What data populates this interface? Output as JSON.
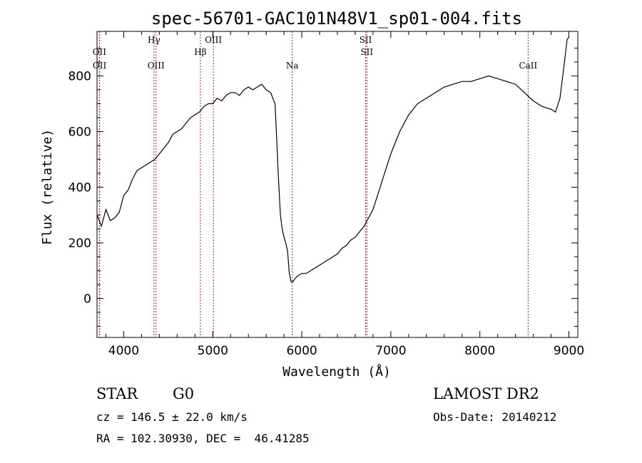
{
  "chart_data": {
    "type": "line",
    "title": "spec-56701-GAC101N48V1_sp01-004.fits",
    "xlabel": "Wavelength (Å)",
    "ylabel": "Flux (relative)",
    "xlim": [
      3700,
      9100
    ],
    "ylim": [
      -140,
      960
    ],
    "x_ticks": [
      4000,
      5000,
      6000,
      7000,
      8000,
      9000
    ],
    "y_ticks": [
      0,
      200,
      400,
      600,
      800
    ],
    "grid": false,
    "series": [
      {
        "x": [
          3700,
          3750,
          3800,
          3850,
          3900,
          3950,
          4000,
          4050,
          4100,
          4150,
          4200,
          4250,
          4300,
          4350,
          4400,
          4450,
          4500,
          4550,
          4600,
          4650,
          4700,
          4750,
          4800,
          4850,
          4900,
          4950,
          5000,
          5050,
          5100,
          5150,
          5200,
          5250,
          5300,
          5350,
          5400,
          5450,
          5500,
          5550,
          5600,
          5650,
          5700,
          5740,
          5760,
          5780,
          5800,
          5820,
          5840,
          5860,
          5880,
          5900,
          5920,
          5950,
          6000,
          6050,
          6100,
          6150,
          6200,
          6250,
          6300,
          6350,
          6400,
          6450,
          6500,
          6550,
          6600,
          6650,
          6700,
          6750,
          6800,
          6850,
          6900,
          6950,
          7000,
          7050,
          7100,
          7150,
          7200,
          7250,
          7300,
          7350,
          7400,
          7450,
          7500,
          7600,
          7700,
          7800,
          7900,
          8000,
          8100,
          8200,
          8300,
          8400,
          8500,
          8600,
          8700,
          8800,
          8850,
          8900,
          8950,
          8980,
          9000
        ],
        "y": [
          300,
          260,
          320,
          280,
          290,
          310,
          370,
          390,
          430,
          460,
          470,
          480,
          490,
          500,
          520,
          540,
          560,
          590,
          600,
          610,
          630,
          650,
          660,
          670,
          690,
          700,
          700,
          720,
          710,
          730,
          740,
          740,
          730,
          750,
          760,
          750,
          760,
          770,
          750,
          740,
          700,
          420,
          300,
          250,
          220,
          200,
          170,
          90,
          60,
          60,
          70,
          80,
          90,
          90,
          100,
          110,
          120,
          130,
          140,
          150,
          160,
          180,
          190,
          210,
          220,
          240,
          260,
          290,
          320,
          370,
          420,
          470,
          520,
          560,
          600,
          630,
          660,
          680,
          700,
          710,
          720,
          730,
          740,
          760,
          770,
          780,
          780,
          790,
          800,
          790,
          780,
          770,
          740,
          710,
          690,
          680,
          670,
          720,
          850,
          930,
          940
        ]
      }
    ],
    "line_markers": [
      {
        "label": "OII",
        "x": 3727,
        "row": 1
      },
      {
        "label": "OII",
        "x": 3729,
        "row": 2
      },
      {
        "label": "Hγ",
        "x": 4340,
        "row": 0
      },
      {
        "label": "OIII",
        "x": 4363,
        "row": 2
      },
      {
        "label": "Hβ",
        "x": 4861,
        "row": 1
      },
      {
        "label": "OIII",
        "x": 5007,
        "row": 0
      },
      {
        "label": "Na",
        "x": 5893,
        "row": 2
      },
      {
        "label": "SII",
        "x": 6717,
        "row": 0
      },
      {
        "label": "SII",
        "x": 6731,
        "row": 1
      },
      {
        "label": "CaII",
        "x": 8542,
        "row": 2
      }
    ],
    "line_marker_color": "#b22222"
  },
  "info": {
    "object_class": "STAR",
    "subclass": "G0",
    "survey": "LAMOST DR2",
    "redshift": "cz = 146.5 ± 22.0 km/s",
    "obs_date": "Obs-Date: 20140212",
    "coords": "RA = 102.30930, DEC =  46.41285"
  }
}
